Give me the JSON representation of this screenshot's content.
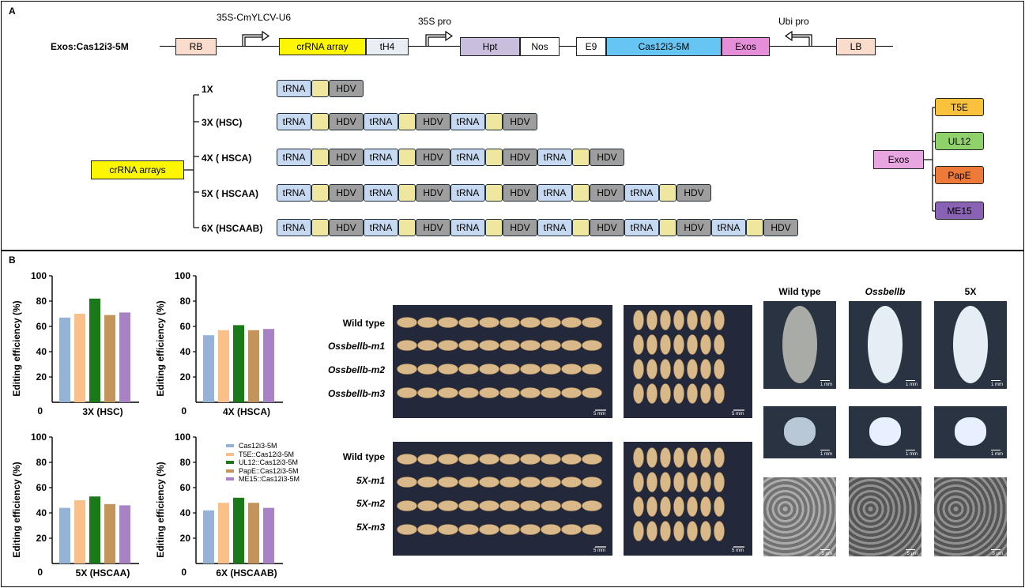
{
  "panelA": {
    "label": "A",
    "construct_name": "Exos:Cas12i3-5M",
    "promoters": {
      "u6": "35S-CmYLCV-U6",
      "s35": "35S pro",
      "ubi": "Ubi pro"
    },
    "elements": {
      "rb": "RB",
      "crrna": "crRNA array",
      "th4": "tH4",
      "hpt": "Hpt",
      "nos": "Nos",
      "e9": "E9",
      "cas": "Cas12i3-5M",
      "exos": "Exos",
      "lb": "LB"
    },
    "crrna_arrays_label": "crRNA arrays",
    "trna": "tRNA",
    "hdv": "HDV",
    "arrays": [
      {
        "label": "1X",
        "units": 1
      },
      {
        "label": "3X (HSC)",
        "units": 3
      },
      {
        "label": "4X ( HSCA)",
        "units": 4
      },
      {
        "label": "5X ( HSCAA)",
        "units": 5
      },
      {
        "label": "6X (HSCAAB)",
        "units": 6
      }
    ],
    "exos_label": "Exos",
    "exos_variants": [
      {
        "name": "T5E",
        "color": "#f9c23c"
      },
      {
        "name": "UL12",
        "color": "#8fd16a"
      },
      {
        "name": "PapE",
        "color": "#ee7a3a"
      },
      {
        "name": "ME15",
        "color": "#8a62b3"
      }
    ]
  },
  "panelB": {
    "label": "B",
    "legend": [
      {
        "name": "Cas12i3-5M",
        "color": "#94b3d7"
      },
      {
        "name": "T5E::Cas12i3-5M",
        "color": "#fbc08a"
      },
      {
        "name": "UL12::Cas12i3-5M",
        "color": "#1a7a1a"
      },
      {
        "name": "PapE::Cas12i3-5M",
        "color": "#c3955a"
      },
      {
        "name": "ME15::Cas12i3-5M",
        "color": "#a783c6"
      }
    ],
    "grain_rows_top": [
      "Wild type",
      "Ossbellb-m1",
      "Ossbellb-m2",
      "Ossbellb-m3"
    ],
    "grain_rows_bottom": [
      "Wild type",
      "5X-m1",
      "5X-m2",
      "5X-m3"
    ],
    "scale_5mm": "5 mm",
    "scale_1mm": "1 mm",
    "scale_5um": "5 μm",
    "micro_headers": [
      "Wild type",
      "Ossbellb",
      "5X"
    ]
  },
  "chart_data": [
    {
      "type": "bar",
      "title": "3X (HSC)",
      "ylabel": "Editing efficiency (%)",
      "ylim": [
        0,
        100
      ],
      "yticks": [
        20,
        40,
        60,
        80,
        100
      ],
      "zero_label": "0",
      "categories": [
        "Cas12i3-5M",
        "T5E::Cas12i3-5M",
        "UL12::Cas12i3-5M",
        "PapE::Cas12i3-5M",
        "ME15::Cas12i3-5M"
      ],
      "values": [
        67,
        70,
        82,
        69,
        71
      ]
    },
    {
      "type": "bar",
      "title": "4X (HSCA)",
      "ylabel": "Editing efficiency (%)",
      "ylim": [
        0,
        100
      ],
      "yticks": [
        20,
        40,
        60,
        80,
        100
      ],
      "zero_label": "0",
      "categories": [
        "Cas12i3-5M",
        "T5E::Cas12i3-5M",
        "UL12::Cas12i3-5M",
        "PapE::Cas12i3-5M",
        "ME15::Cas12i3-5M"
      ],
      "values": [
        53,
        57,
        61,
        57,
        58
      ]
    },
    {
      "type": "bar",
      "title": "5X (HSCAA)",
      "ylabel": "Editing efficiency (%)",
      "ylim": [
        0,
        100
      ],
      "yticks": [
        20,
        40,
        60,
        80,
        100
      ],
      "zero_label": "0",
      "categories": [
        "Cas12i3-5M",
        "T5E::Cas12i3-5M",
        "UL12::Cas12i3-5M",
        "PapE::Cas12i3-5M",
        "ME15::Cas12i3-5M"
      ],
      "values": [
        44,
        50,
        53,
        47,
        46
      ]
    },
    {
      "type": "bar",
      "title": "6X (HSCAAB)",
      "ylabel": "Editing efficiency (%)",
      "ylim": [
        0,
        100
      ],
      "yticks": [
        20,
        40,
        60,
        80,
        100
      ],
      "zero_label": "0",
      "categories": [
        "Cas12i3-5M",
        "T5E::Cas12i3-5M",
        "UL12::Cas12i3-5M",
        "PapE::Cas12i3-5M",
        "ME15::Cas12i3-5M"
      ],
      "values": [
        42,
        48,
        52,
        48,
        44
      ]
    }
  ]
}
